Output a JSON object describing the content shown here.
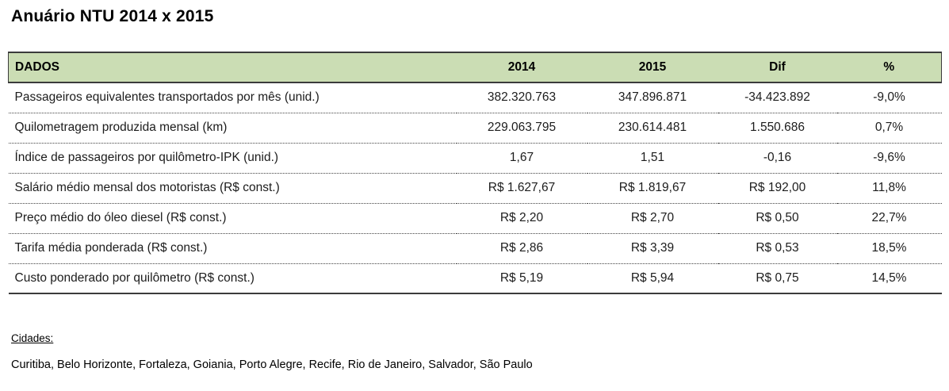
{
  "title": "Anuário NTU 2014 x 2015",
  "table": {
    "columns": [
      "DADOS",
      "2014",
      "2015",
      "Dif",
      "%"
    ],
    "rows": [
      [
        "Passageiros equivalentes transportados por mês (unid.)",
        "382.320.763",
        "347.896.871",
        "-34.423.892",
        "-9,0%"
      ],
      [
        "Quilometragem produzida mensal (km)",
        "229.063.795",
        "230.614.481",
        "1.550.686",
        "0,7%"
      ],
      [
        "Índice de passageiros por quilômetro-IPK (unid.)",
        "1,67",
        "1,51",
        "-0,16",
        "-9,6%"
      ],
      [
        "Salário médio mensal dos motoristas (R$ const.)",
        "R$ 1.627,67",
        "R$ 1.819,67",
        "R$ 192,00",
        "11,8%"
      ],
      [
        "Preço médio do óleo diesel (R$ const.)",
        "R$ 2,20",
        "R$ 2,70",
        "R$ 0,50",
        "22,7%"
      ],
      [
        "Tarifa média ponderada (R$ const.)",
        "R$ 2,86",
        "R$ 3,39",
        "R$ 0,53",
        "18,5%"
      ],
      [
        "Custo ponderado por quilômetro (R$ const.)",
        "R$ 5,19",
        "R$ 5,94",
        "R$ 0,75",
        "14,5%"
      ]
    ]
  },
  "footer": {
    "cities_label": "Cidades:",
    "cities": "Curitiba, Belo Horizonte, Fortaleza, Goiania, Porto Alegre, Recife, Rio de Janeiro, Salvador, São Paulo"
  },
  "colors": {
    "header_bg": "#cbddb4",
    "solid_border": "#3b3b3b",
    "text": "#1c1c1c"
  }
}
